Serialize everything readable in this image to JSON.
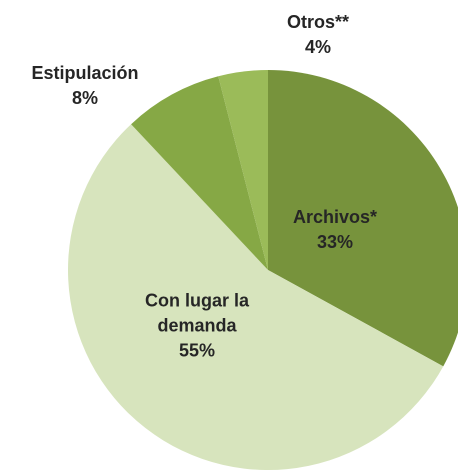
{
  "chart_data": {
    "type": "pie",
    "categories": [
      "Archivos*",
      "Con lugar la demanda",
      "Estipulación",
      "Otros**"
    ],
    "values": [
      33,
      55,
      8,
      4
    ],
    "value_labels": [
      "33%",
      "55%",
      "8%",
      "4%"
    ],
    "colors": [
      "#77933c",
      "#d7e4bd",
      "#86a845",
      "#9bbb59"
    ]
  }
}
